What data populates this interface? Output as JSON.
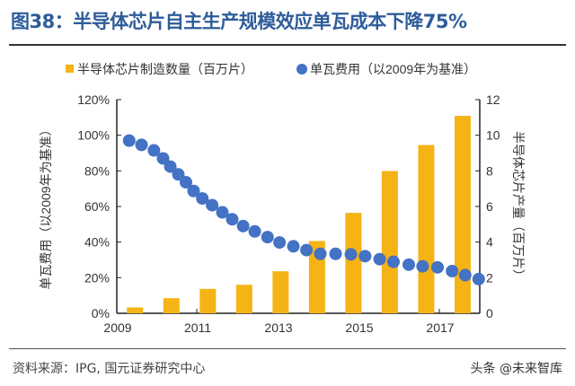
{
  "title": "图38：半导体芯片自主生产规模效应单瓦成本下降75%",
  "source": "资料来源：IPG, 国元证券研究中心",
  "watermark": "头条 @未来智库",
  "chart_data": {
    "type": "bar+scatter",
    "title": "图38：半导体芯片自主生产规模效应单瓦成本下降75%",
    "legend_position": "top",
    "colors": {
      "bars": "#F5B316",
      "dots": "#4472C4"
    },
    "x_tick_labels": [
      "2009",
      "2011",
      "2013",
      "2015",
      "2017"
    ],
    "y_left": {
      "label": "单瓦费用（以2009年为基准）",
      "ticks": [
        "0%",
        "20%",
        "40%",
        "60%",
        "80%",
        "100%",
        "120%"
      ],
      "range": [
        0,
        120
      ]
    },
    "y_right": {
      "label": "半导体芯片产量（百万片）",
      "ticks": [
        "0",
        "2",
        "4",
        "6",
        "8",
        "10",
        "12"
      ],
      "range": [
        0,
        12
      ]
    },
    "series": [
      {
        "name": "半导体芯片制造数量（百万片）",
        "type": "bar",
        "axis": "right",
        "x": [
          2009,
          2010,
          2011,
          2012,
          2013,
          2014,
          2015,
          2016,
          2017,
          2018
        ],
        "values": [
          0.33,
          0.85,
          1.37,
          1.6,
          2.36,
          4.06,
          5.64,
          7.99,
          9.45,
          11.09
        ]
      },
      {
        "name": "单瓦费用（以2009年为基准）",
        "type": "scatter",
        "axis": "left",
        "x": [
          2008.84,
          2009.18,
          2009.52,
          2009.77,
          2009.97,
          2010.19,
          2010.4,
          2010.61,
          2010.85,
          2011.12,
          2011.4,
          2011.67,
          2011.97,
          2012.29,
          2012.64,
          2012.97,
          2013.35,
          2013.71,
          2014.09,
          2014.51,
          2014.93,
          2015.32,
          2015.72,
          2016.1,
          2016.52,
          2016.9,
          2017.31,
          2017.71,
          2018.07,
          2018.44
        ],
        "values": [
          97,
          94.6,
          91.5,
          87,
          82.4,
          78,
          73.6,
          68.7,
          64.5,
          60.7,
          56.7,
          52.8,
          49,
          46,
          42.8,
          39.8,
          37.6,
          35.5,
          33.4,
          33.4,
          33.1,
          32.1,
          30.4,
          28.9,
          27.3,
          26.4,
          25.8,
          23.7,
          21.4,
          19.2
        ]
      }
    ]
  }
}
